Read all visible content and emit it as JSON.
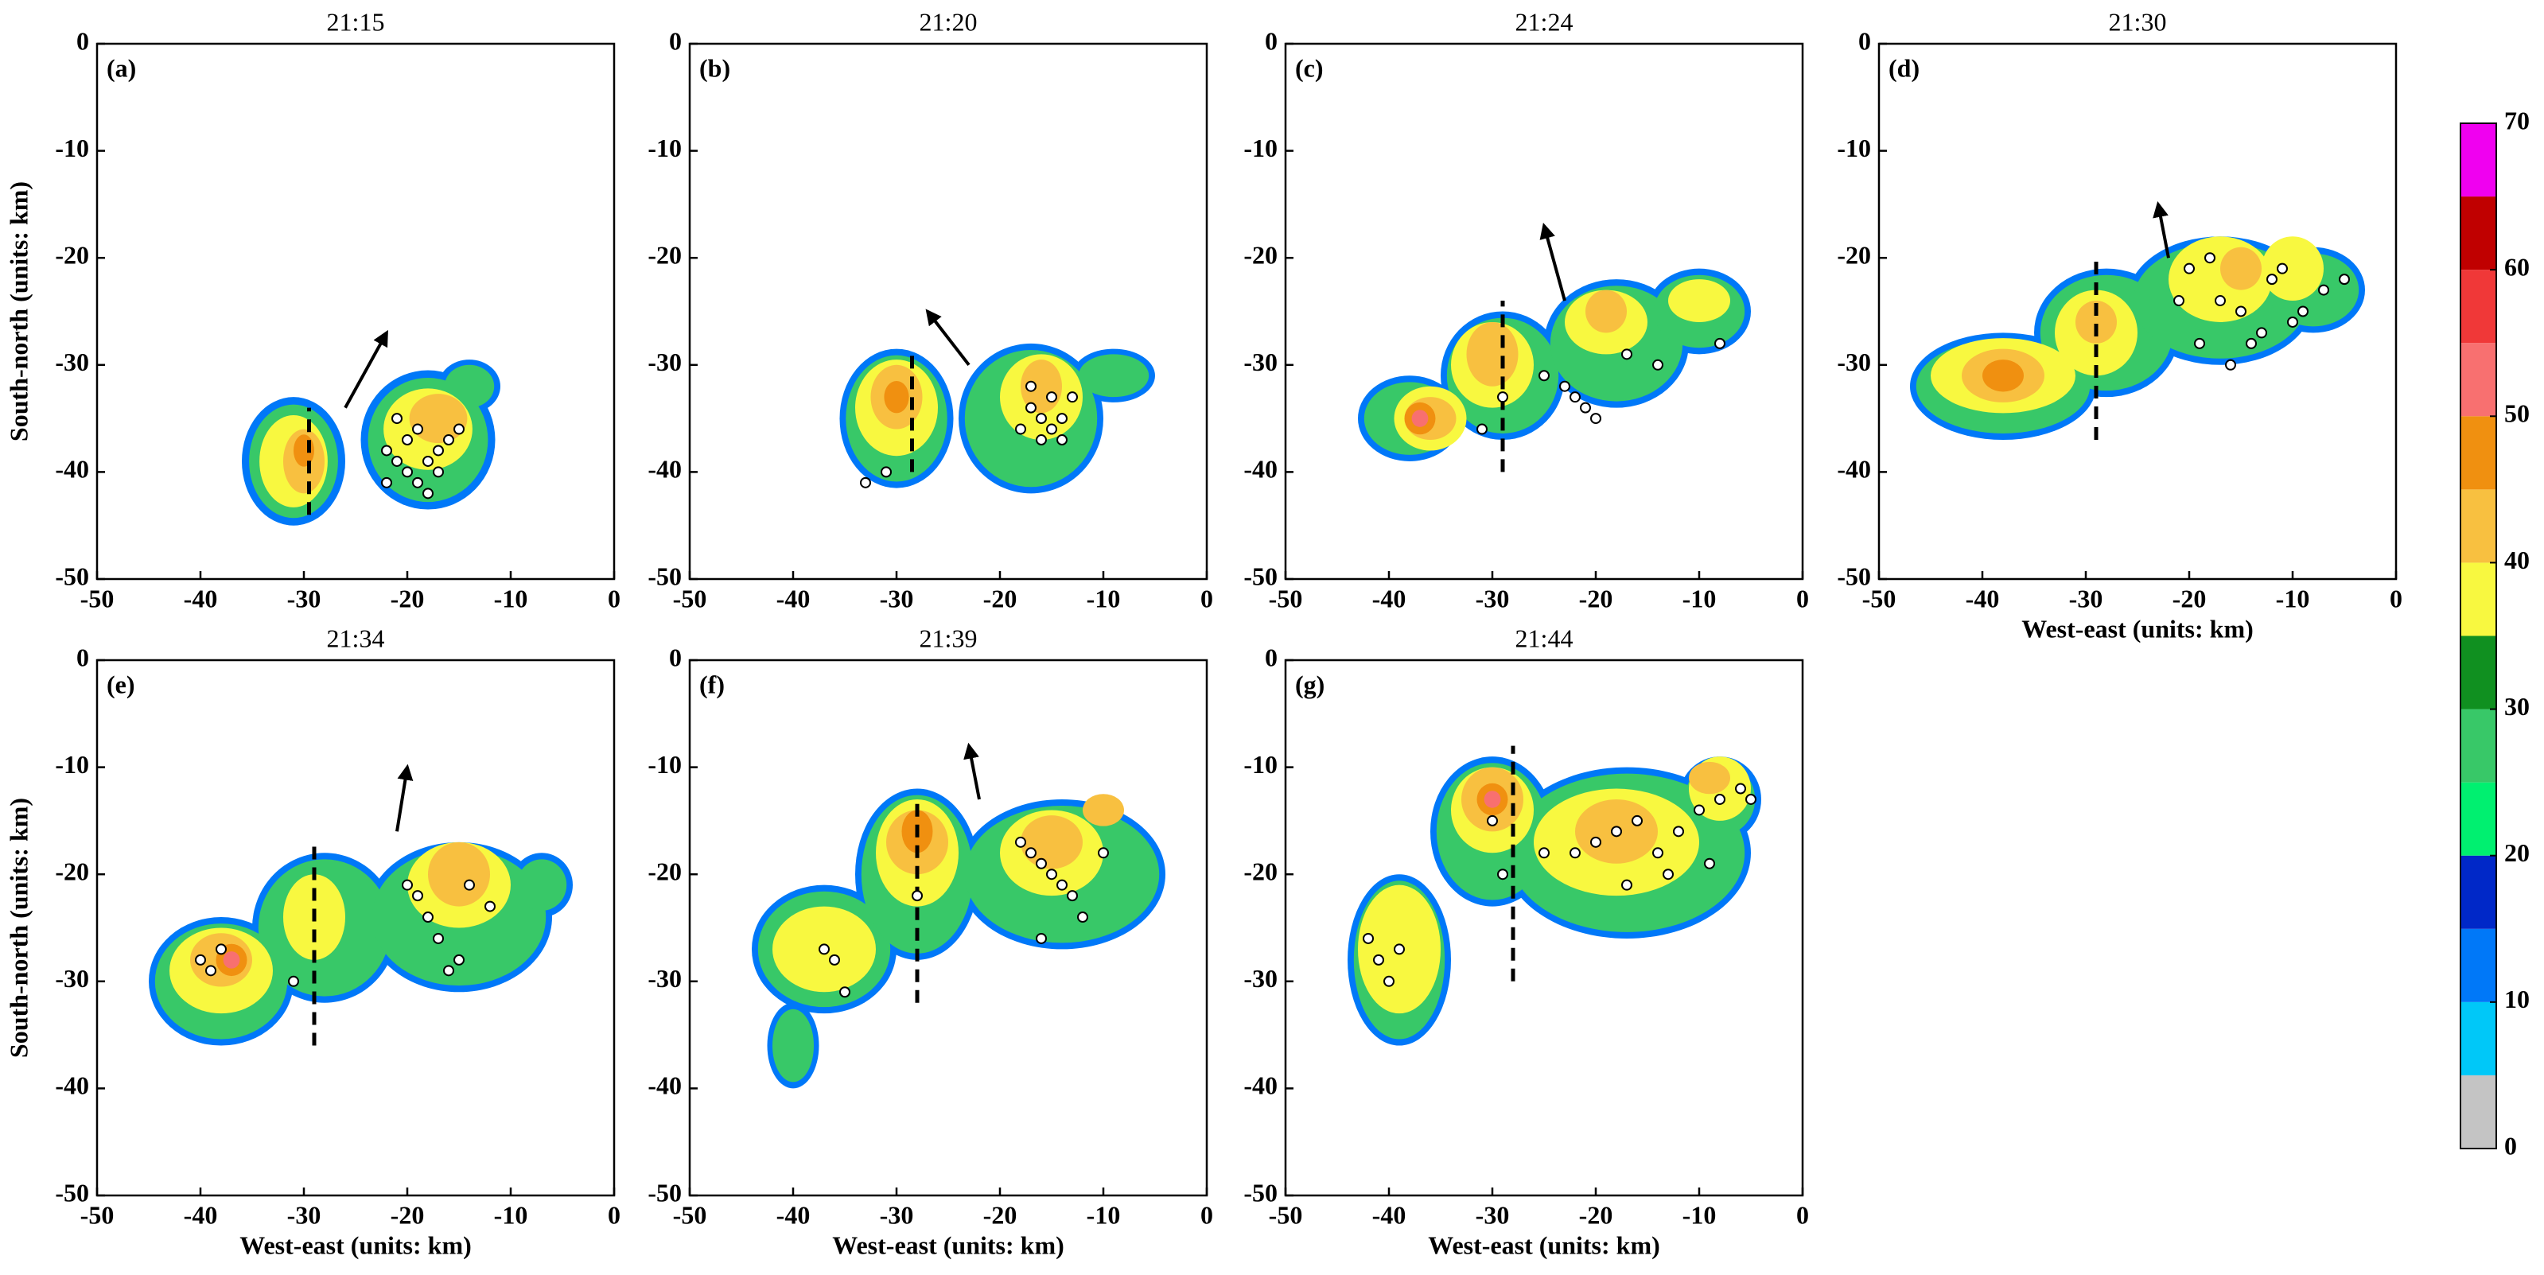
{
  "chart_data": [
    {
      "type": "contour",
      "title": "21:15",
      "label": "(a)",
      "ylabel": "South-north (units: km)",
      "xlim": [
        -50,
        0
      ],
      "ylim": [
        -50,
        0
      ],
      "xticks": [
        -50,
        -40,
        -30,
        -20,
        -10,
        0
      ],
      "yticks": [
        0,
        -10,
        -20,
        -30,
        -40,
        -50
      ],
      "echoes": [
        [
          -31,
          -39,
          5,
          6,
          12
        ],
        [
          -18,
          -37,
          6.5,
          6.5,
          12
        ],
        [
          -14,
          -32,
          3,
          2.5,
          12
        ],
        [
          -31,
          -39,
          4.3,
          5.3,
          28
        ],
        [
          -18,
          -37,
          5.8,
          5.8,
          28
        ],
        [
          -14,
          -32,
          2.4,
          2,
          28
        ],
        [
          -31,
          -39,
          3.3,
          4.3,
          38
        ],
        [
          -18,
          -36,
          4.3,
          3.8,
          38
        ],
        [
          -30,
          -39,
          2,
          3,
          43
        ],
        [
          -17,
          -35,
          2.8,
          2.3,
          43
        ],
        [
          -30,
          -38,
          1,
          1.5,
          48
        ]
      ],
      "flashes": {
        "x": [
          -22,
          -21,
          -20,
          -19,
          -18,
          -17,
          -16,
          -20,
          -19,
          -22,
          -18,
          -15,
          -21,
          -17
        ],
        "y": [
          -38,
          -39,
          -40,
          -41,
          -39,
          -38,
          -37,
          -37,
          -36,
          -41,
          -42,
          -36,
          -35,
          -40
        ]
      },
      "cross_section": {
        "x": -29.5,
        "y": [
          -44,
          -34
        ]
      },
      "motion": {
        "x": [
          -26,
          -22
        ],
        "y": [
          -34,
          -27
        ]
      }
    },
    {
      "type": "contour",
      "title": "21:20",
      "label": "(b)",
      "xlim": [
        -50,
        0
      ],
      "ylim": [
        -50,
        0
      ],
      "xticks": [
        -50,
        -40,
        -30,
        -20,
        -10,
        0
      ],
      "yticks": [
        0,
        -10,
        -20,
        -30,
        -40,
        -50
      ],
      "echoes": [
        [
          -30,
          -35,
          5.5,
          6.5,
          12
        ],
        [
          -17,
          -35,
          7,
          7,
          12
        ],
        [
          -9,
          -31,
          4,
          2.5,
          12
        ],
        [
          -30,
          -35,
          4.9,
          5.9,
          28
        ],
        [
          -17,
          -35,
          6.4,
          6.4,
          28
        ],
        [
          -9,
          -31,
          3.4,
          2,
          28
        ],
        [
          -30,
          -34,
          4,
          4.5,
          38
        ],
        [
          -16,
          -33,
          4,
          4,
          38
        ],
        [
          -30,
          -33,
          2.5,
          3,
          43
        ],
        [
          -16,
          -32,
          2,
          2.5,
          43
        ],
        [
          -30,
          -33,
          1.2,
          1.5,
          48
        ]
      ],
      "flashes": {
        "x": [
          -33,
          -31,
          -17,
          -16,
          -15,
          -14,
          -13,
          -16,
          -15,
          -14,
          -18,
          -17
        ],
        "y": [
          -41,
          -40,
          -34,
          -35,
          -36,
          -35,
          -33,
          -37,
          -33,
          -37,
          -36,
          -32
        ]
      },
      "cross_section": {
        "x": -28.5,
        "y": [
          -40,
          -29
        ]
      },
      "motion": {
        "x": [
          -23,
          -27
        ],
        "y": [
          -30,
          -25
        ]
      }
    },
    {
      "type": "contour",
      "title": "21:24",
      "label": "(c)",
      "xlim": [
        -50,
        0
      ],
      "ylim": [
        -50,
        0
      ],
      "xticks": [
        -50,
        -40,
        -30,
        -20,
        -10,
        0
      ],
      "yticks": [
        0,
        -10,
        -20,
        -30,
        -40,
        -50
      ],
      "echoes": [
        [
          -38,
          -35,
          5,
          4,
          12
        ],
        [
          -29,
          -31,
          6,
          6,
          12
        ],
        [
          -18,
          -28,
          7,
          6,
          12
        ],
        [
          -10,
          -25,
          5,
          4,
          12
        ],
        [
          -38,
          -35,
          4.4,
          3.4,
          28
        ],
        [
          -29,
          -31,
          5.4,
          5.4,
          28
        ],
        [
          -18,
          -28,
          6.4,
          5.4,
          28
        ],
        [
          -10,
          -25,
          4.4,
          3.4,
          28
        ],
        [
          -36,
          -35,
          3.5,
          3,
          38
        ],
        [
          -30,
          -30,
          4,
          4,
          38
        ],
        [
          -19,
          -26,
          4,
          3,
          38
        ],
        [
          -10,
          -24,
          3,
          2,
          38
        ],
        [
          -36,
          -35,
          2.5,
          2,
          43
        ],
        [
          -30,
          -29,
          2.5,
          3,
          43
        ],
        [
          -19,
          -25,
          2,
          2,
          43
        ],
        [
          -37,
          -35,
          1.5,
          1.5,
          48
        ],
        [
          -37,
          -35,
          0.8,
          0.8,
          52
        ]
      ],
      "flashes": {
        "x": [
          -31,
          -29,
          -25,
          -23,
          -22,
          -21,
          -20,
          -8,
          -14,
          -17
        ],
        "y": [
          -36,
          -33,
          -31,
          -32,
          -33,
          -34,
          -35,
          -28,
          -30,
          -29
        ]
      },
      "cross_section": {
        "x": -29,
        "y": [
          -40,
          -24
        ]
      },
      "motion": {
        "x": [
          -23,
          -25
        ],
        "y": [
          -24,
          -17
        ]
      }
    },
    {
      "type": "contour",
      "title": "21:30",
      "label": "(d)",
      "xlabel": "West-east (units: km)",
      "xlim": [
        -50,
        0
      ],
      "ylim": [
        -50,
        0
      ],
      "xticks": [
        -50,
        -40,
        -30,
        -20,
        -10,
        0
      ],
      "yticks": [
        0,
        -10,
        -20,
        -30,
        -40,
        -50
      ],
      "echoes": [
        [
          -38,
          -32,
          9,
          5,
          12
        ],
        [
          -28,
          -27,
          7,
          6,
          12
        ],
        [
          -17,
          -24,
          9,
          6,
          12
        ],
        [
          -8,
          -23,
          5,
          4,
          12
        ],
        [
          -38,
          -32,
          8.4,
          4.4,
          28
        ],
        [
          -28,
          -27,
          6.4,
          5.4,
          28
        ],
        [
          -17,
          -24,
          8.4,
          5.4,
          28
        ],
        [
          -8,
          -23,
          4.4,
          3.4,
          28
        ],
        [
          -38,
          -31,
          7,
          3.5,
          38
        ],
        [
          -29,
          -27,
          4,
          4,
          38
        ],
        [
          -17,
          -22,
          5,
          4,
          38
        ],
        [
          -10,
          -21,
          3,
          3,
          38
        ],
        [
          -38,
          -31,
          4,
          2.5,
          43
        ],
        [
          -29,
          -26,
          2,
          2,
          43
        ],
        [
          -15,
          -21,
          2,
          2,
          43
        ],
        [
          -38,
          -31,
          2,
          1.5,
          48
        ]
      ],
      "flashes": {
        "x": [
          -20,
          -18,
          -17,
          -15,
          -14,
          -13,
          -12,
          -10,
          -9,
          -7,
          -5,
          -19,
          -16,
          -21,
          -11
        ],
        "y": [
          -21,
          -20,
          -24,
          -25,
          -28,
          -27,
          -22,
          -26,
          -25,
          -23,
          -22,
          -28,
          -30,
          -24,
          -21
        ]
      },
      "cross_section": {
        "x": -29,
        "y": [
          -37,
          -20
        ]
      },
      "motion": {
        "x": [
          -22,
          -23
        ],
        "y": [
          -20,
          -15
        ]
      }
    },
    {
      "type": "contour",
      "title": "21:34",
      "label": "(e)",
      "ylabel": "South-north (units: km)",
      "xlabel": "West-east (units: km)",
      "xlim": [
        -50,
        0
      ],
      "ylim": [
        -50,
        0
      ],
      "xticks": [
        -50,
        -40,
        -30,
        -20,
        -10,
        0
      ],
      "yticks": [
        0,
        -10,
        -20,
        -30,
        -40,
        -50
      ],
      "echoes": [
        [
          -38,
          -30,
          7,
          6,
          12
        ],
        [
          -28,
          -25,
          7,
          7,
          12
        ],
        [
          -15,
          -24,
          9,
          7,
          12
        ],
        [
          -7,
          -21,
          3,
          3,
          12
        ],
        [
          -38,
          -30,
          6.4,
          5.4,
          28
        ],
        [
          -28,
          -25,
          6.4,
          6.4,
          28
        ],
        [
          -15,
          -24,
          8.4,
          6.4,
          28
        ],
        [
          -7,
          -21,
          2.4,
          2.4,
          28
        ],
        [
          -38,
          -29,
          5,
          4,
          38
        ],
        [
          -29,
          -24,
          3,
          4,
          38
        ],
        [
          -15,
          -21,
          5,
          4,
          38
        ],
        [
          -38,
          -28,
          3,
          2.5,
          43
        ],
        [
          -15,
          -20,
          3,
          3,
          43
        ],
        [
          -37,
          -28,
          1.5,
          1.5,
          48
        ],
        [
          -37,
          -28,
          0.8,
          0.8,
          52
        ]
      ],
      "flashes": {
        "x": [
          -40,
          -39,
          -38,
          -20,
          -19,
          -18,
          -17,
          -15,
          -16,
          -14,
          -31,
          -12
        ],
        "y": [
          -28,
          -29,
          -27,
          -21,
          -22,
          -24,
          -26,
          -28,
          -29,
          -21,
          -30,
          -23
        ]
      },
      "cross_section": {
        "x": -29,
        "y": [
          -36,
          -17
        ]
      },
      "motion": {
        "x": [
          -21,
          -20
        ],
        "y": [
          -16,
          -10
        ]
      }
    },
    {
      "type": "contour",
      "title": "21:39",
      "label": "(f)",
      "xlabel": "West-east (units: km)",
      "xlim": [
        -50,
        0
      ],
      "ylim": [
        -50,
        0
      ],
      "xticks": [
        -50,
        -40,
        -30,
        -20,
        -10,
        0
      ],
      "yticks": [
        0,
        -10,
        -20,
        -30,
        -40,
        -50
      ],
      "echoes": [
        [
          -37,
          -27,
          7,
          6,
          12
        ],
        [
          -28,
          -20,
          6,
          8,
          12
        ],
        [
          -14,
          -20,
          10,
          7,
          12
        ],
        [
          -40,
          -36,
          2.5,
          4,
          12
        ],
        [
          -37,
          -27,
          6.4,
          5.4,
          28
        ],
        [
          -28,
          -20,
          5.4,
          7.4,
          28
        ],
        [
          -14,
          -20,
          9.4,
          6.4,
          28
        ],
        [
          -40,
          -36,
          2,
          3.4,
          28
        ],
        [
          -37,
          -27,
          5,
          4,
          38
        ],
        [
          -28,
          -18,
          4,
          5,
          38
        ],
        [
          -15,
          -18,
          5,
          4,
          38
        ],
        [
          -28,
          -17,
          3,
          3,
          43
        ],
        [
          -15,
          -17,
          3,
          2.5,
          43
        ],
        [
          -10,
          -14,
          2,
          1.5,
          43
        ],
        [
          -28,
          -16,
          1.5,
          2,
          48
        ]
      ],
      "flashes": {
        "x": [
          -37,
          -36,
          -35,
          -17,
          -16,
          -15,
          -14,
          -13,
          -12,
          -18,
          -28,
          -10,
          -16
        ],
        "y": [
          -27,
          -28,
          -31,
          -18,
          -19,
          -20,
          -21,
          -22,
          -24,
          -17,
          -22,
          -18,
          -26
        ]
      },
      "cross_section": {
        "x": -28,
        "y": [
          -32,
          -13
        ]
      },
      "motion": {
        "x": [
          -22,
          -23
        ],
        "y": [
          -13,
          -8
        ]
      }
    },
    {
      "type": "contour",
      "title": "21:44",
      "label": "(g)",
      "xlabel": "West-east (units: km)",
      "xlim": [
        -50,
        0
      ],
      "ylim": [
        -50,
        0
      ],
      "xticks": [
        -50,
        -40,
        -30,
        -20,
        -10,
        0
      ],
      "yticks": [
        0,
        -10,
        -20,
        -30,
        -40,
        -50
      ],
      "echoes": [
        [
          -39,
          -28,
          5,
          8,
          12
        ],
        [
          -30,
          -16,
          6,
          7,
          12
        ],
        [
          -17,
          -18,
          12,
          8,
          12
        ],
        [
          -8,
          -13,
          4,
          4,
          12
        ],
        [
          -39,
          -28,
          4.4,
          7.4,
          28
        ],
        [
          -30,
          -16,
          5.4,
          6.4,
          28
        ],
        [
          -17,
          -18,
          11.4,
          7.4,
          28
        ],
        [
          -8,
          -13,
          3.4,
          3.4,
          28
        ],
        [
          -39,
          -27,
          4,
          6,
          38
        ],
        [
          -30,
          -14,
          4,
          4,
          38
        ],
        [
          -18,
          -17,
          8,
          5,
          38
        ],
        [
          -8,
          -12,
          3,
          3,
          38
        ],
        [
          -30,
          -13,
          3,
          3,
          43
        ],
        [
          -18,
          -16,
          4,
          3,
          43
        ],
        [
          -9,
          -11,
          2,
          1.5,
          43
        ],
        [
          -30,
          -13,
          1.5,
          1.5,
          48
        ],
        [
          -30,
          -13,
          0.8,
          0.8,
          52
        ]
      ],
      "flashes": {
        "x": [
          -42,
          -41,
          -40,
          -39,
          -30,
          -29,
          -25,
          -22,
          -20,
          -18,
          -16,
          -14,
          -12,
          -10,
          -8,
          -6,
          -5,
          -17,
          -13,
          -9
        ],
        "y": [
          -26,
          -28,
          -30,
          -27,
          -15,
          -20,
          -18,
          -18,
          -17,
          -16,
          -15,
          -18,
          -16,
          -14,
          -13,
          -12,
          -13,
          -21,
          -20,
          -19
        ]
      },
      "cross_section": {
        "x": -28,
        "y": [
          -30,
          -8
        ]
      }
    },
    {
      "type": "colorbar",
      "levels": [
        0,
        5,
        10,
        15,
        20,
        25,
        30,
        35,
        40,
        45,
        50,
        55,
        60,
        65,
        70
      ],
      "colors": [
        "#c4c4c4",
        "#00c8f8",
        "#0078f8",
        "#0028c8",
        "#00f070",
        "#38c868",
        "#109020",
        "#f8f840",
        "#f8c040",
        "#f09010",
        "#f87070",
        "#f03838",
        "#c00000",
        "#f000f0"
      ],
      "ticks": [
        0,
        10,
        20,
        30,
        40,
        50,
        60,
        70
      ]
    }
  ]
}
